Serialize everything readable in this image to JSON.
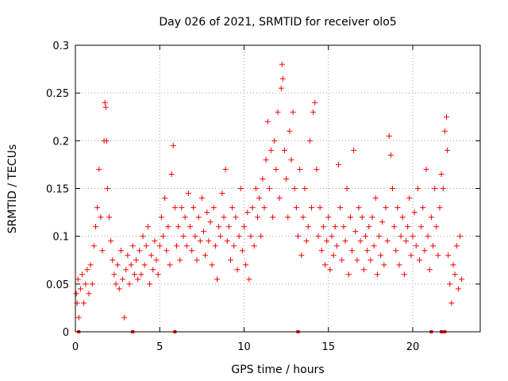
{
  "chart_data": {
    "type": "scatter",
    "title": "Day 026 of 2021, SRMTID for receiver olo5",
    "xlabel": "GPS time / hours",
    "ylabel": "SRMTID / TECUs",
    "xlim": [
      0,
      24
    ],
    "ylim": [
      0,
      0.3
    ],
    "xticks": [
      0,
      5,
      10,
      15,
      20
    ],
    "yticks": [
      0,
      0.05,
      0.1,
      0.15,
      0.2,
      0.25,
      0.3
    ],
    "grid": true,
    "marker": "+",
    "color": "#ff0000",
    "series": [
      {
        "name": "SRMTID",
        "points": [
          [
            0.05,
            0.04
          ],
          [
            0.1,
            0.03
          ],
          [
            0.15,
            0.055
          ],
          [
            0.2,
            0.015
          ],
          [
            0.3,
            0.045
          ],
          [
            0.4,
            0.06
          ],
          [
            0.5,
            0.03
          ],
          [
            0.6,
            0.05
          ],
          [
            0.7,
            0.065
          ],
          [
            0.8,
            0.04
          ],
          [
            0.9,
            0.07
          ],
          [
            1.0,
            0.05
          ],
          [
            1.1,
            0.09
          ],
          [
            1.2,
            0.11
          ],
          [
            1.3,
            0.13
          ],
          [
            1.4,
            0.17
          ],
          [
            1.5,
            0.12
          ],
          [
            1.6,
            0.085
          ],
          [
            1.7,
            0.2
          ],
          [
            1.75,
            0.24
          ],
          [
            1.8,
            0.235
          ],
          [
            1.85,
            0.2
          ],
          [
            1.9,
            0.15
          ],
          [
            2.0,
            0.12
          ],
          [
            2.1,
            0.095
          ],
          [
            2.2,
            0.075
          ],
          [
            2.3,
            0.06
          ],
          [
            2.4,
            0.05
          ],
          [
            2.5,
            0.07
          ],
          [
            2.6,
            0.045
          ],
          [
            2.7,
            0.085
          ],
          [
            2.8,
            0.055
          ],
          [
            2.9,
            0.015
          ],
          [
            3.0,
            0.065
          ],
          [
            3.1,
            0.08
          ],
          [
            3.2,
            0.05
          ],
          [
            3.3,
            0.07
          ],
          [
            3.4,
            0.09
          ],
          [
            3.5,
            0.06
          ],
          [
            3.6,
            0.075
          ],
          [
            3.7,
            0.055
          ],
          [
            3.8,
            0.085
          ],
          [
            3.9,
            0.06
          ],
          [
            4.0,
            0.1
          ],
          [
            4.1,
            0.07
          ],
          [
            4.2,
            0.09
          ],
          [
            4.3,
            0.11
          ],
          [
            4.4,
            0.05
          ],
          [
            4.5,
            0.08
          ],
          [
            4.6,
            0.065
          ],
          [
            4.7,
            0.095
          ],
          [
            4.8,
            0.075
          ],
          [
            4.9,
            0.06
          ],
          [
            5.0,
            0.09
          ],
          [
            5.1,
            0.12
          ],
          [
            5.2,
            0.1
          ],
          [
            5.3,
            0.14
          ],
          [
            5.4,
            0.085
          ],
          [
            5.5,
            0.11
          ],
          [
            5.6,
            0.07
          ],
          [
            5.7,
            0.165
          ],
          [
            5.8,
            0.195
          ],
          [
            5.9,
            0.13
          ],
          [
            6.0,
            0.09
          ],
          [
            6.1,
            0.11
          ],
          [
            6.2,
            0.075
          ],
          [
            6.3,
            0.13
          ],
          [
            6.4,
            0.1
          ],
          [
            6.5,
            0.12
          ],
          [
            6.6,
            0.09
          ],
          [
            6.7,
            0.145
          ],
          [
            6.8,
            0.11
          ],
          [
            6.9,
            0.085
          ],
          [
            7.0,
            0.13
          ],
          [
            7.1,
            0.1
          ],
          [
            7.2,
            0.075
          ],
          [
            7.3,
            0.12
          ],
          [
            7.4,
            0.095
          ],
          [
            7.5,
            0.14
          ],
          [
            7.6,
            0.105
          ],
          [
            7.7,
            0.08
          ],
          [
            7.8,
            0.125
          ],
          [
            7.9,
            0.095
          ],
          [
            8.0,
            0.115
          ],
          [
            8.1,
            0.07
          ],
          [
            8.2,
            0.13
          ],
          [
            8.3,
            0.09
          ],
          [
            8.4,
            0.055
          ],
          [
            8.5,
            0.11
          ],
          [
            8.6,
            0.1
          ],
          [
            8.7,
            0.145
          ],
          [
            8.8,
            0.12
          ],
          [
            8.9,
            0.17
          ],
          [
            9.0,
            0.095
          ],
          [
            9.1,
            0.11
          ],
          [
            9.2,
            0.075
          ],
          [
            9.3,
            0.13
          ],
          [
            9.4,
            0.09
          ],
          [
            9.5,
            0.12
          ],
          [
            9.6,
            0.065
          ],
          [
            9.7,
            0.1
          ],
          [
            9.8,
            0.15
          ],
          [
            9.9,
            0.085
          ],
          [
            10.0,
            0.11
          ],
          [
            10.1,
            0.07
          ],
          [
            10.2,
            0.125
          ],
          [
            10.3,
            0.055
          ],
          [
            10.4,
            0.1
          ],
          [
            10.5,
            0.13
          ],
          [
            10.6,
            0.09
          ],
          [
            10.7,
            0.15
          ],
          [
            10.8,
            0.12
          ],
          [
            10.9,
            0.14
          ],
          [
            11.0,
            0.1
          ],
          [
            11.1,
            0.16
          ],
          [
            11.2,
            0.13
          ],
          [
            11.3,
            0.18
          ],
          [
            11.4,
            0.22
          ],
          [
            11.5,
            0.15
          ],
          [
            11.6,
            0.19
          ],
          [
            11.7,
            0.12
          ],
          [
            11.8,
            0.2
          ],
          [
            11.9,
            0.17
          ],
          [
            12.0,
            0.23
          ],
          [
            12.1,
            0.14
          ],
          [
            12.2,
            0.255
          ],
          [
            12.25,
            0.28
          ],
          [
            12.3,
            0.265
          ],
          [
            12.4,
            0.19
          ],
          [
            12.5,
            0.16
          ],
          [
            12.6,
            0.12
          ],
          [
            12.7,
            0.21
          ],
          [
            12.8,
            0.18
          ],
          [
            12.9,
            0.23
          ],
          [
            13.0,
            0.15
          ],
          [
            13.1,
            0.13
          ],
          [
            13.2,
            0.1
          ],
          [
            13.3,
            0.17
          ],
          [
            13.4,
            0.08
          ],
          [
            13.5,
            0.12
          ],
          [
            13.6,
            0.15
          ],
          [
            13.7,
            0.095
          ],
          [
            13.8,
            0.11
          ],
          [
            13.9,
            0.2
          ],
          [
            14.0,
            0.13
          ],
          [
            14.1,
            0.23
          ],
          [
            14.2,
            0.24
          ],
          [
            14.3,
            0.17
          ],
          [
            14.4,
            0.1
          ],
          [
            14.5,
            0.13
          ],
          [
            14.6,
            0.085
          ],
          [
            14.7,
            0.11
          ],
          [
            14.8,
            0.07
          ],
          [
            14.9,
            0.095
          ],
          [
            15.0,
            0.12
          ],
          [
            15.1,
            0.065
          ],
          [
            15.2,
            0.1
          ],
          [
            15.3,
            0.08
          ],
          [
            15.4,
            0.11
          ],
          [
            15.5,
            0.09
          ],
          [
            15.6,
            0.175
          ],
          [
            15.7,
            0.13
          ],
          [
            15.8,
            0.075
          ],
          [
            15.9,
            0.11
          ],
          [
            16.0,
            0.095
          ],
          [
            16.1,
            0.15
          ],
          [
            16.2,
            0.06
          ],
          [
            16.3,
            0.12
          ],
          [
            16.4,
            0.085
          ],
          [
            16.5,
            0.19
          ],
          [
            16.6,
            0.105
          ],
          [
            16.7,
            0.075
          ],
          [
            16.8,
            0.13
          ],
          [
            16.9,
            0.095
          ],
          [
            17.0,
            0.12
          ],
          [
            17.1,
            0.065
          ],
          [
            17.2,
            0.1
          ],
          [
            17.3,
            0.085
          ],
          [
            17.4,
            0.11
          ],
          [
            17.5,
            0.075
          ],
          [
            17.6,
            0.12
          ],
          [
            17.7,
            0.09
          ],
          [
            17.8,
            0.14
          ],
          [
            17.9,
            0.06
          ],
          [
            18.0,
            0.1
          ],
          [
            18.1,
            0.08
          ],
          [
            18.2,
            0.115
          ],
          [
            18.3,
            0.07
          ],
          [
            18.4,
            0.13
          ],
          [
            18.5,
            0.095
          ],
          [
            18.6,
            0.205
          ],
          [
            18.7,
            0.185
          ],
          [
            18.8,
            0.15
          ],
          [
            18.9,
            0.11
          ],
          [
            19.0,
            0.085
          ],
          [
            19.1,
            0.13
          ],
          [
            19.2,
            0.07
          ],
          [
            19.3,
            0.1
          ],
          [
            19.4,
            0.12
          ],
          [
            19.5,
            0.06
          ],
          [
            19.6,
            0.095
          ],
          [
            19.7,
            0.11
          ],
          [
            19.8,
            0.14
          ],
          [
            19.9,
            0.08
          ],
          [
            20.0,
            0.1
          ],
          [
            20.1,
            0.125
          ],
          [
            20.2,
            0.09
          ],
          [
            20.3,
            0.15
          ],
          [
            20.4,
            0.075
          ],
          [
            20.5,
            0.11
          ],
          [
            20.6,
            0.13
          ],
          [
            20.7,
            0.085
          ],
          [
            20.8,
            0.17
          ],
          [
            20.9,
            0.1
          ],
          [
            21.0,
            0.065
          ],
          [
            21.1,
            0.12
          ],
          [
            21.2,
            0.09
          ],
          [
            21.3,
            0.15
          ],
          [
            21.4,
            0.11
          ],
          [
            21.5,
            0.08
          ],
          [
            21.6,
            0.13
          ],
          [
            21.7,
            0.165
          ],
          [
            21.8,
            0.15
          ],
          [
            21.9,
            0.21
          ],
          [
            22.0,
            0.225
          ],
          [
            22.05,
            0.19
          ],
          [
            22.1,
            0.08
          ],
          [
            22.2,
            0.05
          ],
          [
            22.3,
            0.03
          ],
          [
            22.4,
            0.07
          ],
          [
            22.5,
            0.06
          ],
          [
            22.6,
            0.09
          ],
          [
            22.7,
            0.045
          ],
          [
            22.8,
            0.1
          ],
          [
            22.9,
            0.055
          ]
        ]
      }
    ],
    "zero_markers": [
      0.2,
      3.4,
      5.9,
      13.2,
      21.1,
      21.7,
      21.9
    ]
  }
}
